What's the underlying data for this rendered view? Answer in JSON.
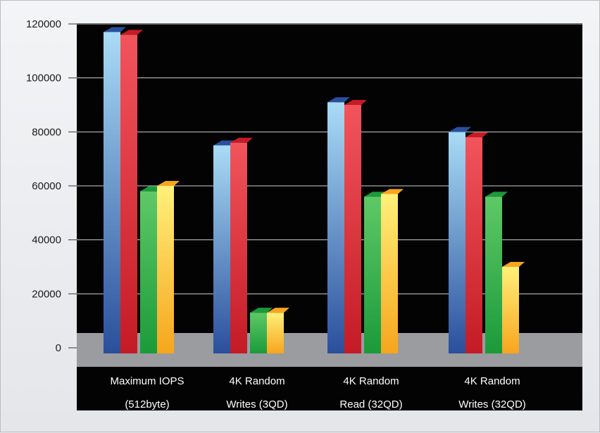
{
  "chart_data": {
    "type": "bar",
    "title": "",
    "xlabel": "",
    "ylabel": "",
    "ylim": [
      0,
      120000
    ],
    "yticks": [
      0,
      20000,
      40000,
      60000,
      80000,
      100000,
      120000
    ],
    "grid": true,
    "legend": "none",
    "categories": [
      [
        "Maximum IOPS",
        "(512byte)"
      ],
      [
        "4K Random",
        "Writes (3QD)"
      ],
      [
        "4K Random",
        "Read (32QD)"
      ],
      [
        "4K Random",
        "Writes (32QD)"
      ]
    ],
    "series": [
      {
        "values": [
          117000,
          75000,
          91000,
          80000
        ],
        "colors": [
          "#a9dcf6",
          "#2a4f9c",
          "#1d2361"
        ]
      },
      {
        "values": [
          116000,
          76000,
          90000,
          78000
        ],
        "colors": [
          "#f2545c",
          "#c41b26",
          "#8a0e16"
        ]
      },
      {
        "values": [
          58000,
          13000,
          56000,
          56000
        ],
        "colors": [
          "#5fc866",
          "#1b9a3a",
          "#0e5e22"
        ]
      },
      {
        "values": [
          60000,
          13000,
          57000,
          30000
        ],
        "colors": [
          "#fff07a",
          "#f7a51e",
          "#c8721a"
        ]
      }
    ]
  }
}
